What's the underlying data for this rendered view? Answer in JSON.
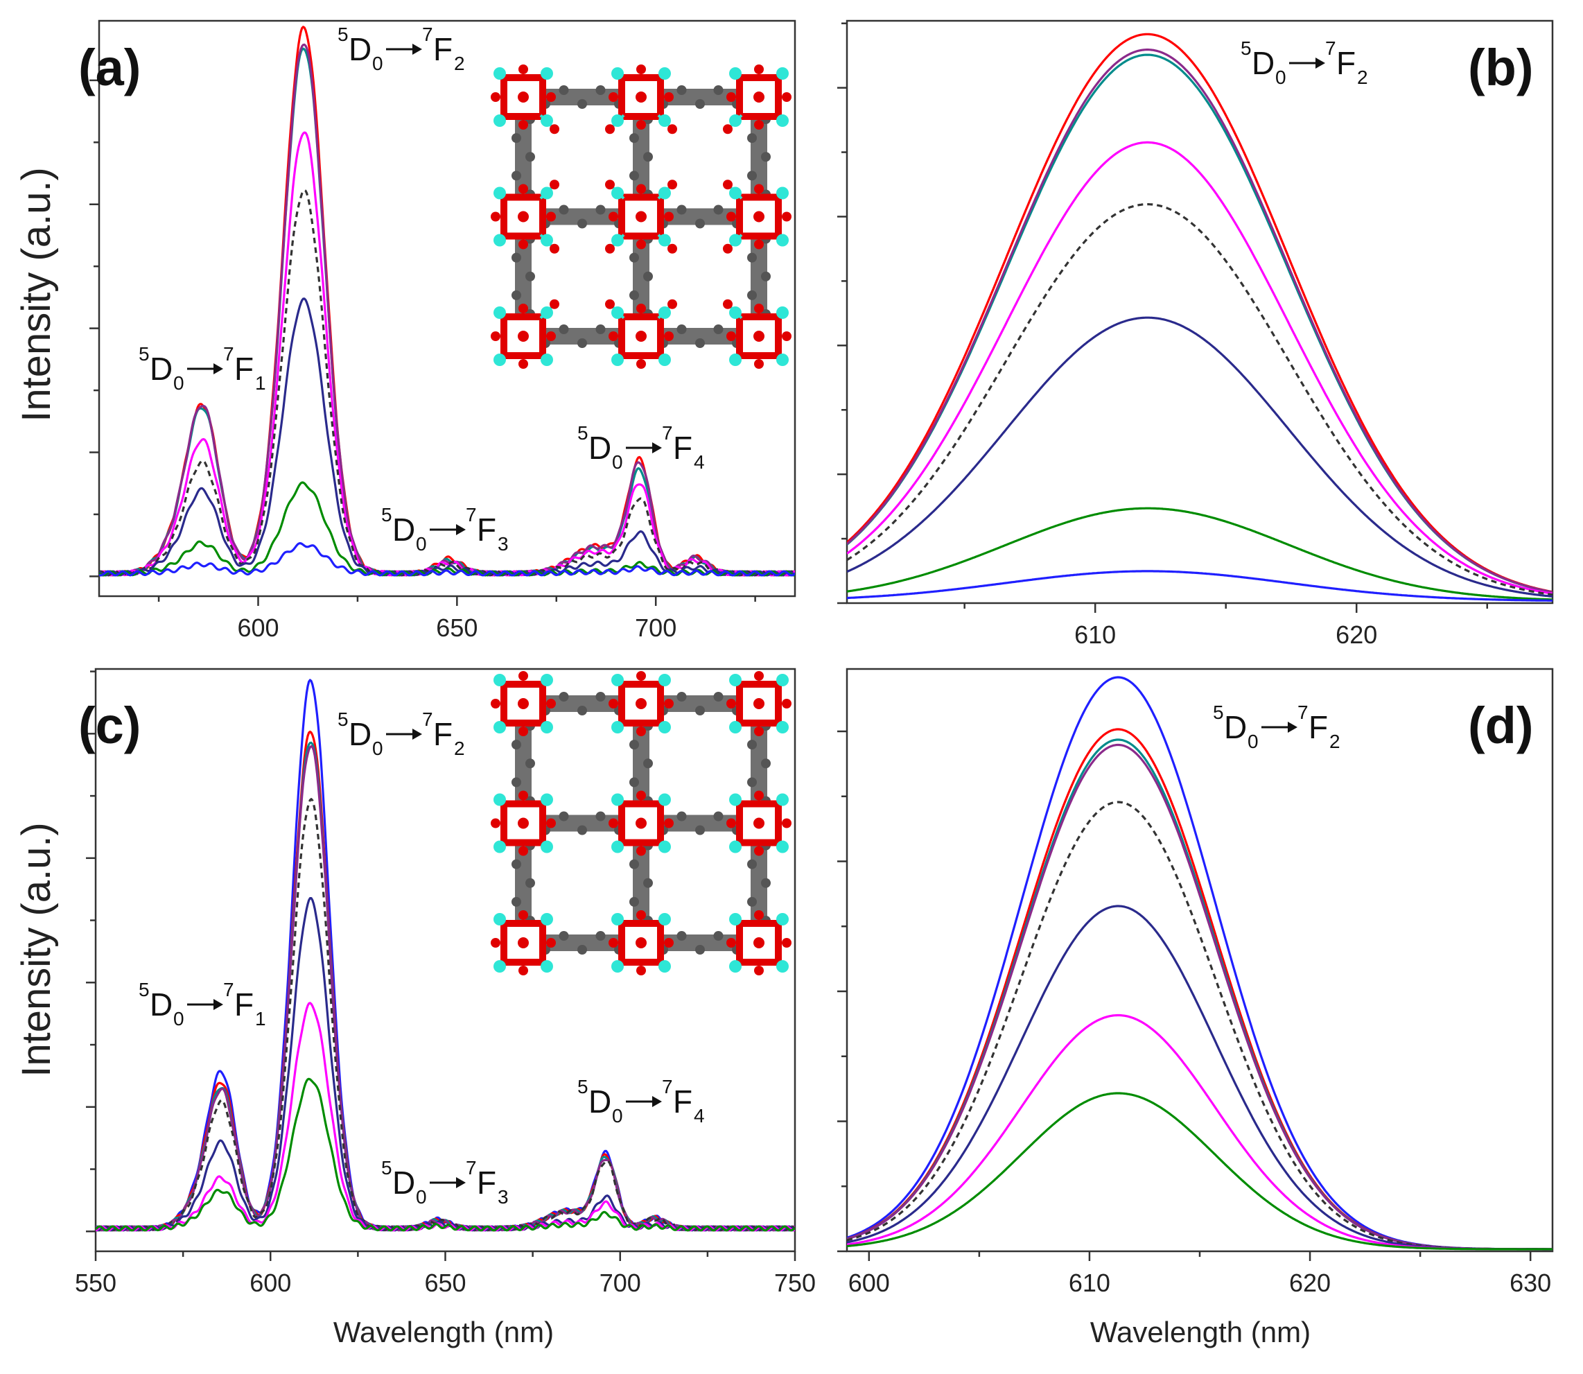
{
  "ylabel_a": "Intensity (a.u.)",
  "ylabel_c": "Intensity (a.u.)",
  "xlabel_c": "Wavelength (nm)",
  "xlabel_d": "Wavelength (nm)",
  "series_colors": [
    "#1f1fff",
    "#008c00",
    "#2a2a8c",
    "#ff00ff",
    "#333333",
    "#8b2a8b",
    "#008b8b",
    "#ff0000"
  ],
  "inset_colors": {
    "metal": "#2ee6d6",
    "oxygen": "#e00000",
    "carbon": "#707070"
  },
  "chart_data": [
    {
      "panel": "a",
      "type": "line",
      "xlim": [
        560,
        735
      ],
      "ylim": [
        -0.04,
        1.12
      ],
      "xticks": [
        "600",
        "650",
        "700"
      ],
      "annotations": [
        {
          "text": "(a)"
        },
        {
          "text": "5D0→7F2",
          "parts": [
            "5",
            "D",
            "0",
            "7",
            "F",
            "2"
          ]
        },
        {
          "text": "5D0→7F1",
          "parts": [
            "5",
            "D",
            "0",
            "7",
            "F",
            "1"
          ]
        },
        {
          "text": "5D0→7F3",
          "parts": [
            "5",
            "D",
            "0",
            "7",
            "F",
            "3"
          ]
        },
        {
          "text": "5D0→7F4",
          "parts": [
            "5",
            "D",
            "0",
            "7",
            "F",
            "4"
          ]
        }
      ],
      "peaks": [
        {
          "x": 586,
          "width": 4.2
        },
        {
          "x": 611.5,
          "width": 5.2
        },
        {
          "x": 648,
          "width": 3.2
        },
        {
          "x": 696,
          "width": 3.0
        }
      ],
      "series": [
        {
          "color": "#ff0000",
          "dashed": false,
          "heights": [
            0.335,
            1.1,
            0.03,
            0.22
          ]
        },
        {
          "color": "#008b8b",
          "dashed": false,
          "heights": [
            0.33,
            1.06,
            0.026,
            0.2
          ]
        },
        {
          "color": "#8b2a8b",
          "dashed": false,
          "heights": [
            0.335,
            1.07,
            0.024,
            0.215
          ]
        },
        {
          "color": "#ff00ff",
          "dashed": false,
          "heights": [
            0.265,
            0.89,
            0.022,
            0.175
          ]
        },
        {
          "color": "#333333",
          "dashed": true,
          "heights": [
            0.22,
            0.77,
            0.02,
            0.145
          ]
        },
        {
          "color": "#2a2a8c",
          "dashed": false,
          "heights": [
            0.165,
            0.55,
            0.012,
            0.078
          ]
        },
        {
          "color": "#008c00",
          "dashed": false,
          "heights": [
            0.06,
            0.18,
            0.006,
            0.018
          ]
        },
        {
          "color": "#1f1fff",
          "dashed": false,
          "heights": [
            0.018,
            0.058,
            0.002,
            0.01
          ]
        }
      ]
    },
    {
      "panel": "b",
      "type": "line",
      "xlim": [
        600.5,
        627.5
      ],
      "ylim": [
        0,
        1.13
      ],
      "xticks": [
        "610",
        "620"
      ],
      "annotations": [
        {
          "text": "(b)"
        },
        {
          "text": "5D0→7F2",
          "parts": [
            "5",
            "D",
            "0",
            "7",
            "F",
            "2"
          ]
        }
      ],
      "peak": {
        "x": 612,
        "width": 5.4
      },
      "series": [
        {
          "color": "#ff0000",
          "dashed": false,
          "height": 1.1
        },
        {
          "color": "#008b8b",
          "dashed": false,
          "height": 1.06
        },
        {
          "color": "#8b2a8b",
          "dashed": false,
          "height": 1.07
        },
        {
          "color": "#ff00ff",
          "dashed": false,
          "height": 0.89
        },
        {
          "color": "#333333",
          "dashed": true,
          "height": 0.77
        },
        {
          "color": "#2a2a8c",
          "dashed": false,
          "height": 0.55
        },
        {
          "color": "#008c00",
          "dashed": false,
          "height": 0.18
        },
        {
          "color": "#1f1fff",
          "dashed": false,
          "height": 0.058
        }
      ]
    },
    {
      "panel": "c",
      "type": "line",
      "xlim": [
        550,
        750
      ],
      "ylim": [
        -0.04,
        1.13
      ],
      "xticks": [
        "550",
        "600",
        "650",
        "700",
        "750"
      ],
      "xlabel": "Wavelength (nm)",
      "annotations": [
        {
          "text": "(c)"
        },
        {
          "text": "5D0→7F2",
          "parts": [
            "5",
            "D",
            "0",
            "7",
            "F",
            "2"
          ]
        },
        {
          "text": "5D0→7F1",
          "parts": [
            "5",
            "D",
            "0",
            "7",
            "F",
            "1"
          ]
        },
        {
          "text": "5D0→7F3",
          "parts": [
            "5",
            "D",
            "0",
            "7",
            "F",
            "3"
          ]
        },
        {
          "text": "5D0→7F4",
          "parts": [
            "5",
            "D",
            "0",
            "7",
            "F",
            "4"
          ]
        }
      ],
      "peaks": [
        {
          "x": 586,
          "width": 4.2
        },
        {
          "x": 611.5,
          "width": 5.2
        },
        {
          "x": 648,
          "width": 3.2
        },
        {
          "x": 696,
          "width": 3.0
        }
      ],
      "series": [
        {
          "color": "#1f1fff",
          "dashed": false,
          "heights": [
            0.31,
            1.1,
            0.018,
            0.145
          ]
        },
        {
          "color": "#ff0000",
          "dashed": false,
          "heights": [
            0.29,
            1.0,
            0.016,
            0.14
          ]
        },
        {
          "color": "#008b8b",
          "dashed": false,
          "heights": [
            0.28,
            0.98,
            0.016,
            0.138
          ]
        },
        {
          "color": "#8b2a8b",
          "dashed": false,
          "heights": [
            0.275,
            0.97,
            0.015,
            0.135
          ]
        },
        {
          "color": "#333333",
          "dashed": true,
          "heights": [
            0.25,
            0.86,
            0.014,
            0.13
          ]
        },
        {
          "color": "#2a2a8c",
          "dashed": false,
          "heights": [
            0.17,
            0.66,
            0.01,
            0.06
          ]
        },
        {
          "color": "#ff00ff",
          "dashed": false,
          "heights": [
            0.1,
            0.45,
            0.006,
            0.048
          ]
        },
        {
          "color": "#008c00",
          "dashed": false,
          "heights": [
            0.075,
            0.3,
            0.005,
            0.028
          ]
        }
      ]
    },
    {
      "panel": "d",
      "type": "line",
      "xlim": [
        599,
        631
      ],
      "ylim": [
        0,
        1.12
      ],
      "xticks": [
        "600",
        "610",
        "620",
        "630"
      ],
      "xlabel": "Wavelength (nm)",
      "annotations": [
        {
          "text": "(d)"
        },
        {
          "text": "5D0→7F2",
          "parts": [
            "5",
            "D",
            "0",
            "7",
            "F",
            "2"
          ]
        }
      ],
      "peak": {
        "x": 611.3,
        "width": 4.4
      },
      "series": [
        {
          "color": "#1f1fff",
          "dashed": false,
          "height": 1.1
        },
        {
          "color": "#ff0000",
          "dashed": false,
          "height": 1.0
        },
        {
          "color": "#008b8b",
          "dashed": false,
          "height": 0.98
        },
        {
          "color": "#8b2a8b",
          "dashed": false,
          "height": 0.97
        },
        {
          "color": "#333333",
          "dashed": true,
          "height": 0.86
        },
        {
          "color": "#2a2a8c",
          "dashed": false,
          "height": 0.66
        },
        {
          "color": "#ff00ff",
          "dashed": false,
          "height": 0.45
        },
        {
          "color": "#008c00",
          "dashed": false,
          "height": 0.3
        }
      ]
    }
  ]
}
